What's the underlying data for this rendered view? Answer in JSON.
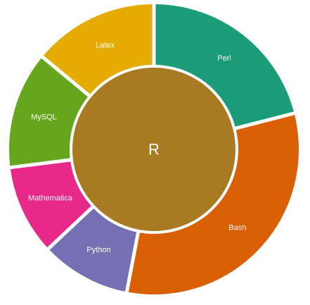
{
  "chart_data": {
    "type": "pie",
    "subtype": "sunburst",
    "center": {
      "label": "R",
      "color": "#A87A22"
    },
    "slices": [
      {
        "label": "Perl",
        "value": 21,
        "color": "#1B9E77"
      },
      {
        "label": "Bash",
        "value": 32,
        "color": "#D95F02"
      },
      {
        "label": "Python",
        "value": 10,
        "color": "#7570B3"
      },
      {
        "label": "Mathematica",
        "value": 10,
        "color": "#E7298A"
      },
      {
        "label": "MySQL",
        "value": 13,
        "color": "#66A61E"
      },
      {
        "label": "Latex",
        "value": 14,
        "color": "#E6AB02"
      }
    ],
    "title": "",
    "legend": "none"
  }
}
